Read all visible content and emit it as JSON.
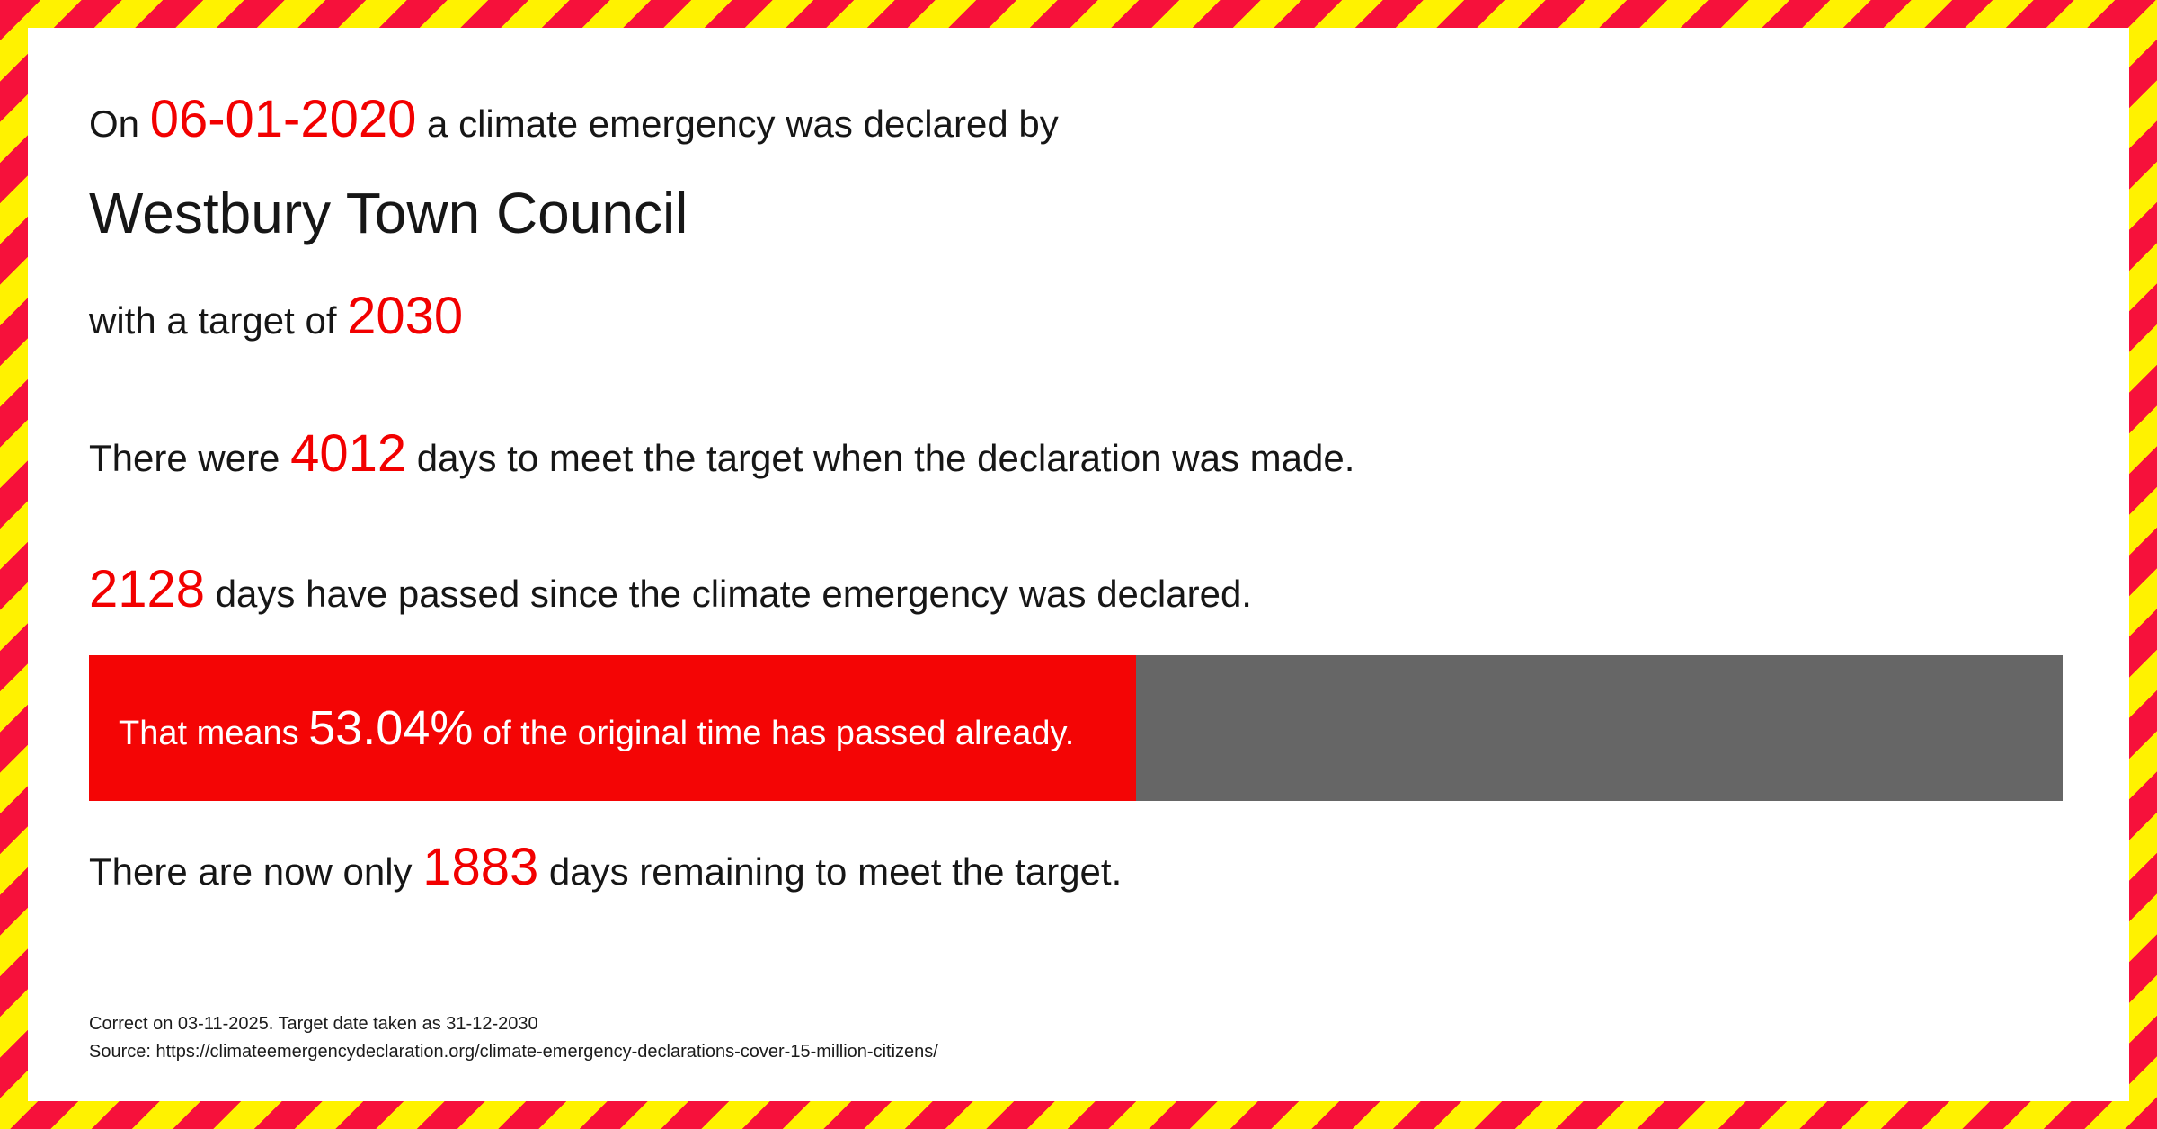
{
  "colors": {
    "stripe_red": "#f6113b",
    "stripe_yellow": "#fff200",
    "text_red": "#f20000",
    "text_black": "#161616",
    "bar_red": "#f40505",
    "bar_gray": "#666666",
    "bar_text": "#ffffff"
  },
  "declaration": {
    "prefix": "On ",
    "date": "06-01-2020",
    "suffix": " a climate emergency was declared by"
  },
  "council_name": "Westbury Town Council",
  "target": {
    "prefix": "with a target of ",
    "year": "2030"
  },
  "days_total": {
    "prefix": "There were ",
    "value": "4012",
    "suffix": "  days to meet the target when the declaration was made."
  },
  "days_passed": {
    "value": "2128",
    "suffix": " days have passed since the climate emergency was declared."
  },
  "progress": {
    "prefix": "That means ",
    "percent": "53.04%",
    "percent_value": 53.04,
    "suffix": " of the original time has passed already."
  },
  "days_remaining": {
    "prefix": "There are now only ",
    "value": "1883",
    "suffix": " days remaining to meet the target."
  },
  "footer": {
    "line1": "Correct on 03-11-2025. Target date taken as 31-12-2030",
    "line2": "Source: https://climateemergencydeclaration.org/climate-emergency-declarations-cover-15-million-citizens/"
  }
}
